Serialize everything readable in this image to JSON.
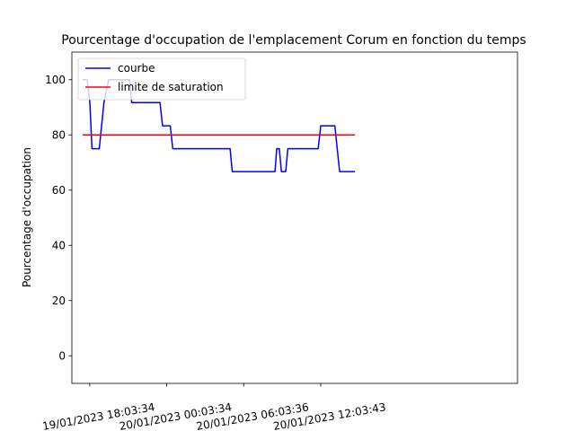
{
  "chart_data": {
    "type": "line",
    "title": "Pourcentage d'occupation de l'emplacement Corum en fonction du temps",
    "xlabel": "",
    "ylabel": "Pourcentage d'occupation",
    "ylim": [
      -10,
      110
    ],
    "yticks": [
      0,
      20,
      40,
      60,
      80,
      100
    ],
    "xlim": [
      "19/01/2023 16:40",
      "21/01/2023 03:24"
    ],
    "xticks": [
      {
        "x": "19/01/2023 18:03:34",
        "label": "19/01/2023 18:03:34"
      },
      {
        "x": "20/01/2023 00:03:34",
        "label": "20/01/2023 00:03:34"
      },
      {
        "x": "20/01/2023 06:03:36",
        "label": "20/01/2023 06:03:36"
      },
      {
        "x": "20/01/2023 12:03:43",
        "label": "20/01/2023 12:03:43"
      }
    ],
    "legend_position": "upper-left",
    "grid": false,
    "series": [
      {
        "name": "courbe",
        "color": "#0000ff",
        "style": "step",
        "points": [
          [
            "19/01/2023 17:30",
            100
          ],
          [
            "19/01/2023 17:52",
            100
          ],
          [
            "19/01/2023 18:04",
            91.7
          ],
          [
            "19/01/2023 18:14",
            75
          ],
          [
            "19/01/2023 18:48",
            75
          ],
          [
            "19/01/2023 19:10",
            91.7
          ],
          [
            "19/01/2023 19:32",
            100
          ],
          [
            "19/01/2023 21:10",
            100
          ],
          [
            "19/01/2023 21:20",
            91.7
          ],
          [
            "19/01/2023 23:32",
            91.7
          ],
          [
            "19/01/2023 23:44",
            83.3
          ],
          [
            "20/01/2023 00:20",
            83.3
          ],
          [
            "20/01/2023 00:32",
            75
          ],
          [
            "20/01/2023 05:00",
            75
          ],
          [
            "20/01/2023 05:10",
            66.7
          ],
          [
            "20/01/2023 08:30",
            66.7
          ],
          [
            "20/01/2023 08:38",
            75
          ],
          [
            "20/01/2023 08:50",
            75
          ],
          [
            "20/01/2023 09:00",
            66.7
          ],
          [
            "20/01/2023 09:20",
            66.7
          ],
          [
            "20/01/2023 09:30",
            75
          ],
          [
            "20/01/2023 11:52",
            75
          ],
          [
            "20/01/2023 12:04",
            83.3
          ],
          [
            "20/01/2023 13:10",
            83.3
          ],
          [
            "20/01/2023 13:32",
            66.7
          ],
          [
            "20/01/2023 14:44",
            66.7
          ]
        ]
      },
      {
        "name": "limite de saturation",
        "color": "#ff0000",
        "style": "line",
        "points": [
          [
            "19/01/2023 17:30",
            80
          ],
          [
            "20/01/2023 14:44",
            80
          ]
        ]
      }
    ]
  }
}
